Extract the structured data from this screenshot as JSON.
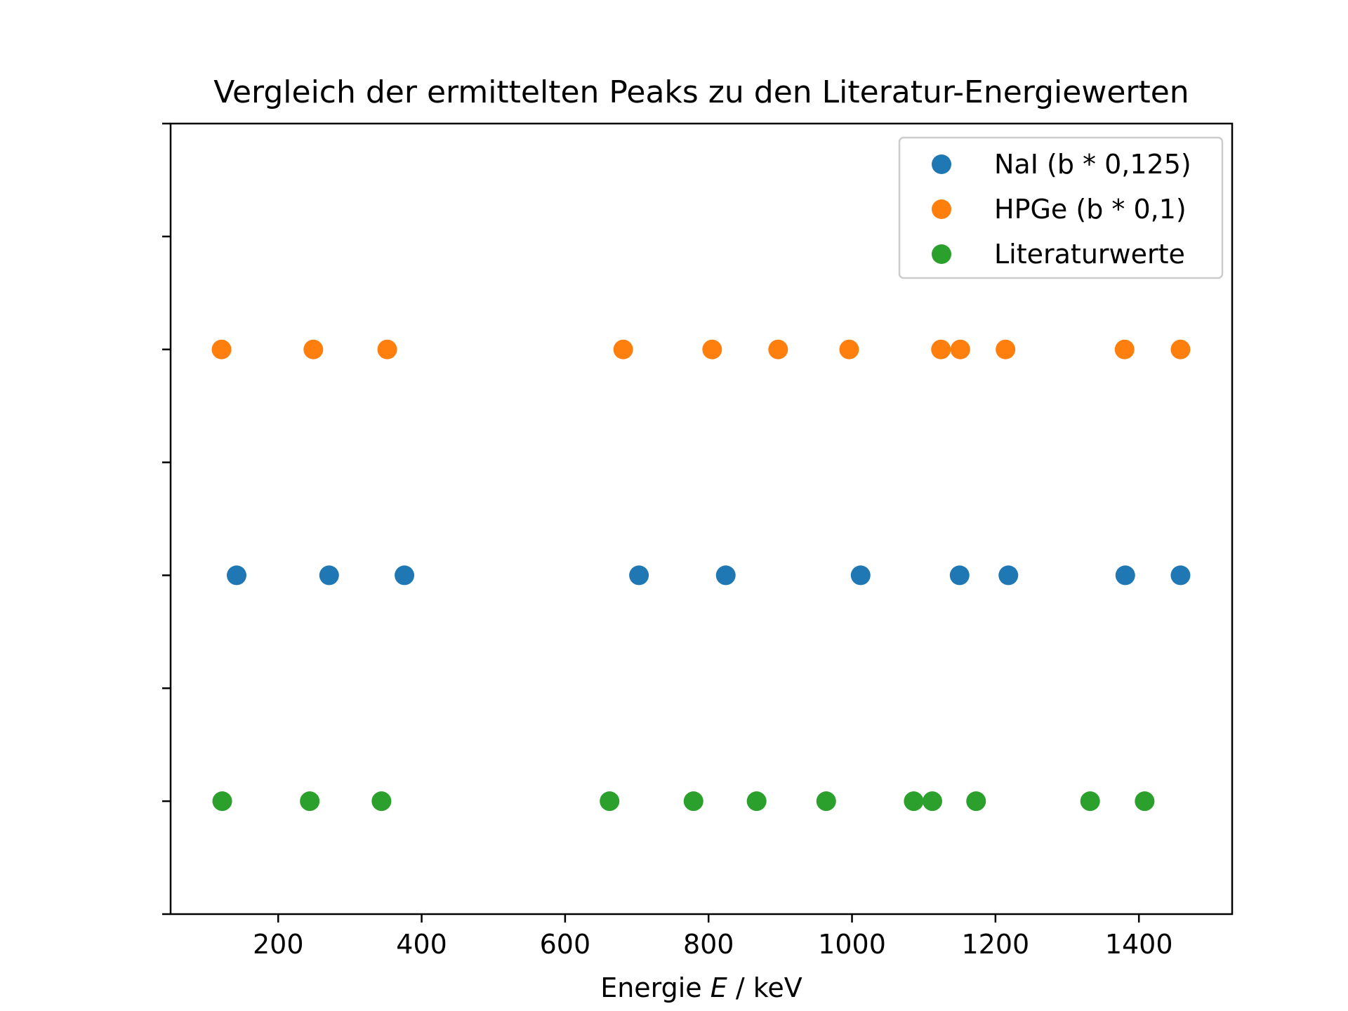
{
  "chart_data": {
    "type": "scatter",
    "title": "Vergleich der ermittelten Peaks zu den Literatur-Energiewerten",
    "xlabel_prefix": "Energie ",
    "xlabel_var": "E",
    "xlabel_suffix": " / keV",
    "ylabel": "",
    "xlim": [
      50,
      1530
    ],
    "ylim": [
      0,
      7
    ],
    "xticks": [
      200,
      400,
      600,
      800,
      1000,
      1200,
      1400
    ],
    "xtick_labels": [
      "200",
      "400",
      "600",
      "800",
      "1000",
      "1200",
      "1400"
    ],
    "yticks": [
      0.0,
      1.0,
      2.0,
      3.0,
      4.0,
      5.0,
      6.0,
      7.0
    ],
    "grid": false,
    "legend_position": "top-right",
    "series": [
      {
        "name": "NaI (b * 0,125)",
        "color": "#1f77b4",
        "y": 3,
        "x": [
          142,
          271,
          376,
          703,
          824,
          1012,
          1150,
          1218,
          1381,
          1458
        ]
      },
      {
        "name": "HPGe (b * 0,1)",
        "color": "#ff7f0e",
        "y": 5,
        "x": [
          121,
          249,
          352,
          681,
          805,
          897,
          996,
          1124,
          1151,
          1214,
          1380,
          1458
        ]
      },
      {
        "name": "Literaturwerte",
        "color": "#2ca02c",
        "y": 1,
        "x": [
          122,
          244,
          344,
          662,
          779,
          867,
          964,
          1086,
          1112,
          1173,
          1332,
          1408
        ]
      }
    ]
  }
}
